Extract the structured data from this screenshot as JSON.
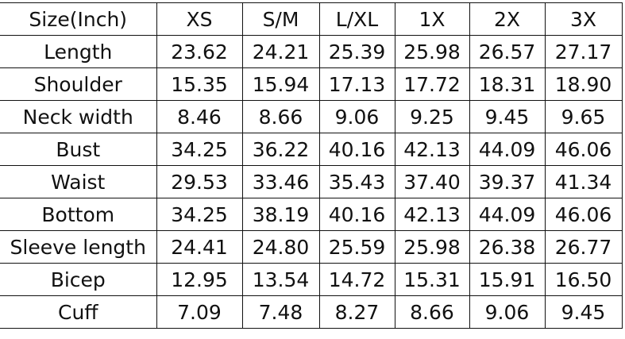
{
  "table": {
    "headers": [
      "Size(Inch)",
      "XS",
      "S/M",
      "L/XL",
      "1X",
      "2X",
      "3X"
    ],
    "rows": [
      [
        "Length",
        "23.62",
        "24.21",
        "25.39",
        "25.98",
        "26.57",
        "27.17"
      ],
      [
        "Shoulder",
        "15.35",
        "15.94",
        "17.13",
        "17.72",
        "18.31",
        "18.90"
      ],
      [
        "Neck width",
        "8.46",
        "8.66",
        "9.06",
        "9.25",
        "9.45",
        "9.65"
      ],
      [
        "Bust",
        "34.25",
        "36.22",
        "40.16",
        "42.13",
        "44.09",
        "46.06"
      ],
      [
        "Waist",
        "29.53",
        "33.46",
        "35.43",
        "37.40",
        "39.37",
        "41.34"
      ],
      [
        "Bottom",
        "34.25",
        "38.19",
        "40.16",
        "42.13",
        "44.09",
        "46.06"
      ],
      [
        "Sleeve length",
        "24.41",
        "24.80",
        "25.59",
        "25.98",
        "26.38",
        "26.77"
      ],
      [
        "Bicep",
        "12.95",
        "13.54",
        "14.72",
        "15.31",
        "15.91",
        "16.50"
      ],
      [
        "Cuff",
        "7.09",
        "7.48",
        "8.27",
        "8.66",
        "9.06",
        "9.45"
      ]
    ]
  }
}
